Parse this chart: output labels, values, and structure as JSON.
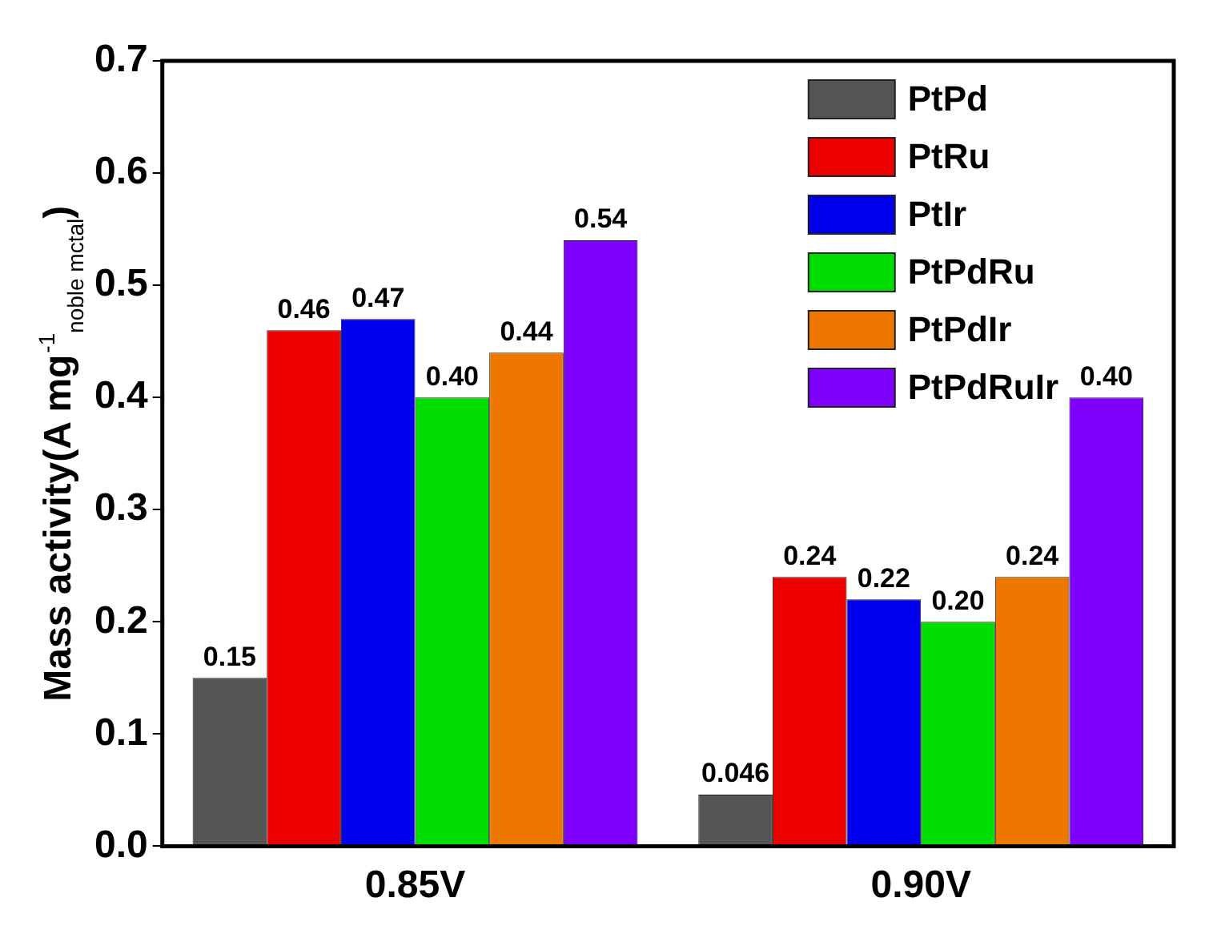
{
  "chart_data": {
    "type": "bar",
    "ylabel": "Mass activity(A mg$^{-1}$$_{noble mctal}$)",
    "categories": [
      "0.85V",
      "0.90V"
    ],
    "series": [
      {
        "name": "PtPd",
        "color": "#555555",
        "values": [
          0.15,
          0.046
        ],
        "value_labels": [
          "0.15",
          "0.046"
        ]
      },
      {
        "name": "PtRu",
        "color": "#ee0000",
        "values": [
          0.46,
          0.24
        ],
        "value_labels": [
          "0.46",
          "0.24"
        ]
      },
      {
        "name": "PtIr",
        "color": "#0000ee",
        "values": [
          0.47,
          0.22
        ],
        "value_labels": [
          "0.47",
          "0.22"
        ]
      },
      {
        "name": "PtPdRu",
        "color": "#00dd00",
        "values": [
          0.4,
          0.2
        ],
        "value_labels": [
          "0.40",
          "0.20"
        ]
      },
      {
        "name": "PtPdIr",
        "color": "#ee7700",
        "values": [
          0.44,
          0.24
        ],
        "value_labels": [
          "0.44",
          "0.24"
        ]
      },
      {
        "name": "PtPdRuIr",
        "color": "#8000ff",
        "values": [
          0.54,
          0.4
        ],
        "value_labels": [
          "0.54",
          "0.40"
        ]
      }
    ],
    "ylim": [
      0,
      0.7
    ],
    "yticks": [
      {
        "value": 0,
        "label": "0.0"
      },
      {
        "value": 0.1,
        "label": "0.1"
      },
      {
        "value": 0.2,
        "label": "0.2"
      },
      {
        "value": 0.3,
        "label": "0.3"
      },
      {
        "value": 0.4,
        "label": "0.4"
      },
      {
        "value": 0.5,
        "label": "0.5"
      },
      {
        "value": 0.6,
        "label": "0.6"
      },
      {
        "value": 0.7,
        "label": "0.7"
      }
    ],
    "grid": false,
    "legend": "top right"
  }
}
